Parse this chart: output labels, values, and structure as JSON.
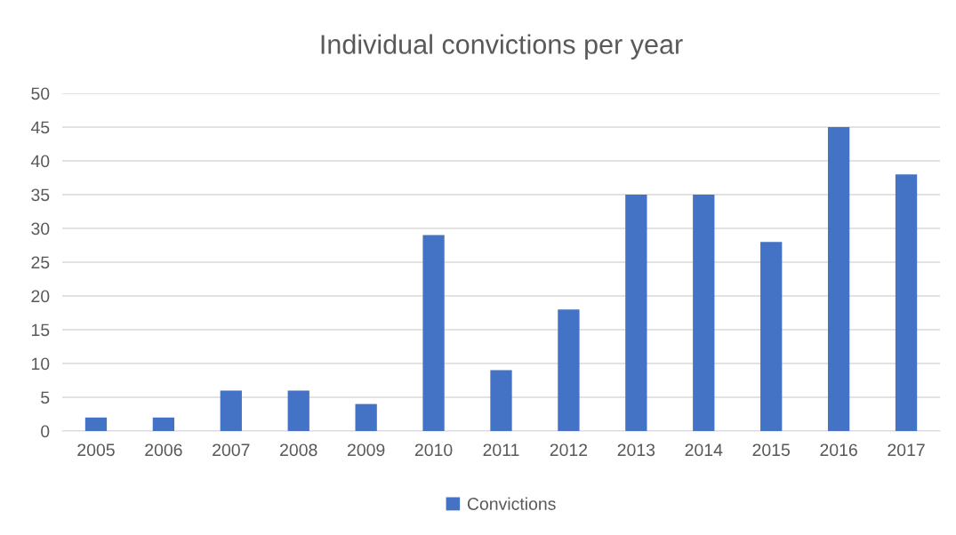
{
  "chart_data": {
    "type": "bar",
    "title": "Individual convictions per year",
    "categories": [
      "2005",
      "2006",
      "2007",
      "2008",
      "2009",
      "2010",
      "2011",
      "2012",
      "2013",
      "2014",
      "2015",
      "2016",
      "2017"
    ],
    "series": [
      {
        "name": "Convictions",
        "color": "#4472c4",
        "values": [
          2,
          2,
          6,
          6,
          4,
          29,
          9,
          18,
          35,
          35,
          28,
          45,
          38
        ]
      }
    ],
    "ylim": [
      0,
      50
    ],
    "yticks": [
      0,
      5,
      10,
      15,
      20,
      25,
      30,
      35,
      40,
      45,
      50
    ],
    "grid": "y",
    "legend": "bottom"
  }
}
